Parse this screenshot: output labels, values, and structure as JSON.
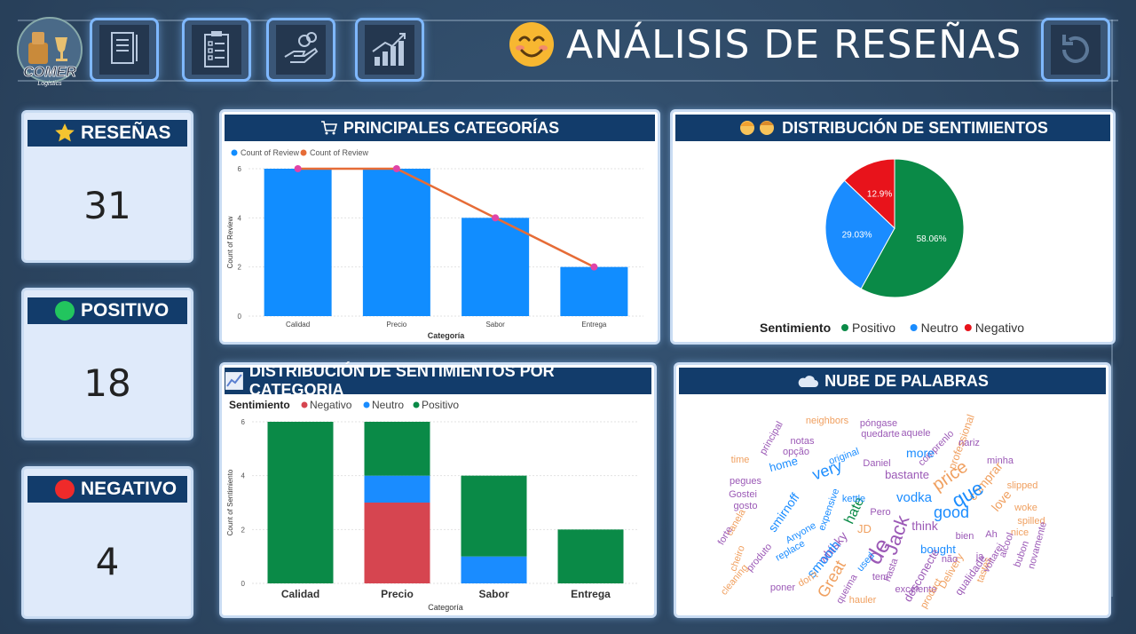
{
  "header": {
    "title": "ANÁLISIS DE RESEÑAS",
    "logo_text": "COMER",
    "logo_subtext": "Logistics",
    "nav_icons": [
      "document-icon",
      "clipboard-checklist-icon",
      "money-hand-icon",
      "growth-chart-icon"
    ],
    "refresh_icon": "refresh-icon"
  },
  "kpis": [
    {
      "label": "RESEÑAS",
      "value": "31",
      "icon": "star-icon",
      "color": "#f4c430"
    },
    {
      "label": "POSITIVO",
      "value": "18",
      "icon": "green-circle-icon",
      "color": "#22c55e"
    },
    {
      "label": "NEGATIVO",
      "value": "4",
      "icon": "red-circle-icon",
      "color": "#ef2a2a"
    }
  ],
  "panels": {
    "categories": {
      "title": "PRINCIPALES CATEGORÍAS"
    },
    "sentiment_dist": {
      "title": "DISTRIBUCIÓN DE SENTIMIENTOS"
    },
    "sentiment_by_cat": {
      "title": "DISTRIBUCIÓN DE SENTIMIENTOS POR CATEGORIA"
    },
    "wordcloud": {
      "title": "NUBE DE PALABRAS"
    }
  },
  "chart_data": [
    {
      "type": "bar",
      "xlabel": "Categoría",
      "ylabel": "Count of Review",
      "legend": [
        "Count of Review",
        "Count of Review"
      ],
      "categories": [
        "Calidad",
        "Precio",
        "Sabor",
        "Entrega"
      ],
      "series": [
        {
          "name": "Count of Review",
          "kind": "bar",
          "values": [
            6,
            6,
            4,
            2
          ],
          "color": "#118dff"
        },
        {
          "name": "Count of Review",
          "kind": "line",
          "values": [
            6,
            6,
            4,
            2
          ],
          "color": "#e66c37",
          "marker_color": "#e044a7"
        }
      ],
      "yticks": [
        0,
        2,
        4,
        6
      ],
      "ylim": [
        0,
        6
      ],
      "grid": true
    },
    {
      "type": "pie",
      "legend_title": "Sentimiento",
      "labels": [
        "Positivo",
        "Neutro",
        "Negativo"
      ],
      "values": [
        58.06,
        29.03,
        12.9
      ],
      "value_labels": [
        "58.06%",
        "29.03%",
        "12.9%"
      ],
      "colors": [
        "#0a8a47",
        "#1a8cff",
        "#e8131b"
      ]
    },
    {
      "type": "bar",
      "stacked": true,
      "legend_title": "Sentimiento",
      "xlabel": "Categoría",
      "ylabel": "Count of Sentimiento",
      "categories": [
        "Calidad",
        "Precio",
        "Sabor",
        "Entrega"
      ],
      "series": [
        {
          "name": "Negativo",
          "values": [
            0,
            3,
            0,
            0
          ],
          "color": "#d64550"
        },
        {
          "name": "Neutro",
          "values": [
            0,
            1,
            1,
            0
          ],
          "color": "#1a8cff"
        },
        {
          "name": "Positivo",
          "values": [
            6,
            2,
            3,
            2
          ],
          "color": "#0a8a47"
        }
      ],
      "yticks": [
        0,
        2,
        4,
        6
      ],
      "ylim": [
        0,
        6
      ],
      "grid": true
    }
  ],
  "wordcloud": {
    "words": [
      {
        "t": "principal",
        "c": "#9b59b6"
      },
      {
        "t": "neighbors",
        "c": "#f0a060"
      },
      {
        "t": "póngase",
        "c": "#9b59b6"
      },
      {
        "t": "aquele",
        "c": "#9b59b6"
      },
      {
        "t": "professional",
        "c": "#f0a060"
      },
      {
        "t": "notas",
        "c": "#9b59b6"
      },
      {
        "t": "quedarte",
        "c": "#9b59b6"
      },
      {
        "t": "comprenlo",
        "c": "#9b59b6"
      },
      {
        "t": "nariz",
        "c": "#9b59b6"
      },
      {
        "t": "opção",
        "c": "#9b59b6"
      },
      {
        "t": "original",
        "c": "#1a8cff"
      },
      {
        "t": "more",
        "c": "#1a8cff"
      },
      {
        "t": "minha",
        "c": "#9b59b6"
      },
      {
        "t": "time",
        "c": "#f0a060"
      },
      {
        "t": "home",
        "c": "#1a8cff"
      },
      {
        "t": "very",
        "c": "#1a8cff"
      },
      {
        "t": "Daniel",
        "c": "#9b59b6"
      },
      {
        "t": "bastante",
        "c": "#9b59b6"
      },
      {
        "t": "price",
        "c": "#f0a060"
      },
      {
        "t": "comprar",
        "c": "#f0a060"
      },
      {
        "t": "slipped",
        "c": "#f0a060"
      },
      {
        "t": "pegues",
        "c": "#9b59b6"
      },
      {
        "t": "Gostei",
        "c": "#9b59b6"
      },
      {
        "t": "vodka",
        "c": "#1a8cff"
      },
      {
        "t": "que",
        "c": "#1a8cff"
      },
      {
        "t": "love",
        "c": "#f0a060"
      },
      {
        "t": "woke",
        "c": "#f0a060"
      },
      {
        "t": "gosto",
        "c": "#9b59b6"
      },
      {
        "t": "smirnoff",
        "c": "#1a8cff"
      },
      {
        "t": "hate",
        "c": "#0a8a47"
      },
      {
        "t": "good",
        "c": "#1a8cff"
      },
      {
        "t": "spilled",
        "c": "#f0a060"
      },
      {
        "t": "canela",
        "c": "#f0a060"
      },
      {
        "t": "expensive",
        "c": "#1a8cff"
      },
      {
        "t": "Pero",
        "c": "#9b59b6"
      },
      {
        "t": "think",
        "c": "#9b59b6"
      },
      {
        "t": "nice",
        "c": "#f0a060"
      },
      {
        "t": "forte",
        "c": "#9b59b6"
      },
      {
        "t": "kettle",
        "c": "#1a8cff"
      },
      {
        "t": "Jack",
        "c": "#9b59b6"
      },
      {
        "t": "de",
        "c": "#9b59b6"
      },
      {
        "t": "bien",
        "c": "#9b59b6"
      },
      {
        "t": "Ah",
        "c": "#9b59b6"
      },
      {
        "t": "cheiro",
        "c": "#f0a060"
      },
      {
        "t": "Anyone",
        "c": "#1a8cff"
      },
      {
        "t": "whisky",
        "c": "#9b59b6"
      },
      {
        "t": "bought",
        "c": "#1a8cff"
      },
      {
        "t": "alcool",
        "c": "#9b59b6"
      },
      {
        "t": "produto",
        "c": "#9b59b6"
      },
      {
        "t": "smooth",
        "c": "#1a8cff"
      },
      {
        "t": "JD",
        "c": "#f0a060"
      },
      {
        "t": "ja",
        "c": "#9b59b6"
      },
      {
        "t": "bubon",
        "c": "#9b59b6"
      },
      {
        "t": "cleaning",
        "c": "#f0a060"
      },
      {
        "t": "replace",
        "c": "#1a8cff"
      },
      {
        "t": "Great",
        "c": "#f0a060"
      },
      {
        "t": "hasta",
        "c": "#9b59b6"
      },
      {
        "t": "Delivery",
        "c": "#f0a060"
      },
      {
        "t": "não",
        "c": "#9b59b6"
      },
      {
        "t": "novamente",
        "c": "#9b59b6"
      },
      {
        "t": "don't",
        "c": "#f0a060"
      },
      {
        "t": "used",
        "c": "#1a8cff"
      },
      {
        "t": "tem",
        "c": "#9b59b6"
      },
      {
        "t": "desconecte",
        "c": "#9b59b6"
      },
      {
        "t": "qualidade",
        "c": "#9b59b6"
      },
      {
        "t": "tastes",
        "c": "#f0a060"
      },
      {
        "t": "poner",
        "c": "#9b59b6"
      },
      {
        "t": "queima",
        "c": "#9b59b6"
      },
      {
        "t": "hauler",
        "c": "#f0a060"
      },
      {
        "t": "excelente",
        "c": "#9b59b6"
      },
      {
        "t": "product",
        "c": "#f0a060"
      },
      {
        "t": "voltarei",
        "c": "#9b59b6"
      }
    ]
  }
}
